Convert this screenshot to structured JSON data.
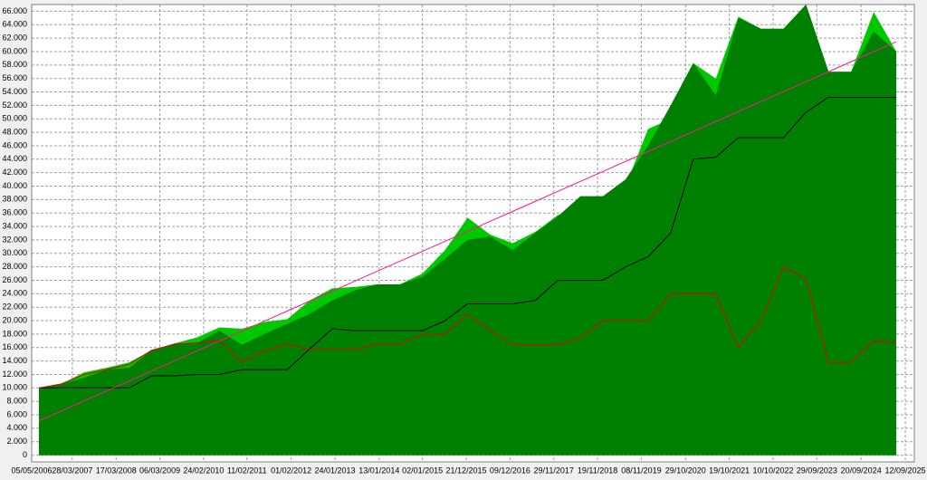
{
  "chart_data": {
    "type": "area",
    "x": [
      2006.5,
      2007,
      2007.5,
      2008,
      2008.5,
      2009,
      2009.5,
      2010,
      2010.5,
      2011,
      2011.5,
      2012,
      2012.5,
      2013,
      2013.5,
      2014,
      2014.5,
      2015,
      2015.5,
      2016,
      2016.5,
      2017,
      2017.5,
      2018,
      2018.5,
      2019,
      2019.5,
      2020,
      2020.5,
      2021,
      2021.5,
      2022,
      2022.5,
      2023,
      2023.5,
      2024,
      2024.5,
      2025,
      2025.5
    ],
    "series": [
      {
        "kind": "area",
        "color": "#00c800",
        "values": [
          10000,
          10600,
          12300,
          13000,
          13800,
          15600,
          16600,
          17500,
          19000,
          18800,
          19800,
          20200,
          23000,
          24800,
          25000,
          25400,
          25400,
          27000,
          30500,
          35300,
          32800,
          31500,
          33200,
          35700,
          37000,
          38500,
          40000,
          48500,
          50000,
          58300,
          56000,
          65200,
          63400,
          63400,
          67000,
          57000,
          57000,
          65900,
          60000
        ]
      },
      {
        "kind": "area",
        "color": "#008000",
        "values": [
          10000,
          10600,
          11500,
          12700,
          13000,
          15600,
          16500,
          16600,
          18500,
          16400,
          18000,
          19500,
          21000,
          23000,
          24500,
          25400,
          25400,
          26500,
          29200,
          32000,
          32500,
          30500,
          33000,
          35500,
          38500,
          38500,
          41000,
          46000,
          52000,
          58300,
          53500,
          65000,
          63400,
          63400,
          67000,
          57000,
          57000,
          63000,
          60000
        ]
      },
      {
        "kind": "line",
        "color": "#000000",
        "values": [
          10000,
          10000,
          10000,
          10000,
          10000,
          11800,
          11800,
          12000,
          12000,
          12700,
          12700,
          12700,
          15800,
          18800,
          18500,
          18500,
          18500,
          18500,
          20000,
          22500,
          22500,
          22500,
          23000,
          26000,
          26000,
          26000,
          28000,
          29500,
          33000,
          44000,
          44300,
          47200,
          47200,
          47200,
          51000,
          53200,
          53200,
          53200,
          53200
        ]
      },
      {
        "kind": "line",
        "color": "#e00000",
        "values": [
          10000,
          10600,
          12000,
          12700,
          13500,
          15600,
          16500,
          16700,
          17000,
          13800,
          15500,
          16500,
          15700,
          15700,
          15700,
          16500,
          16500,
          18000,
          18000,
          21000,
          18500,
          16400,
          16400,
          16400,
          17500,
          20000,
          20000,
          20000,
          24000,
          24000,
          24000,
          16000,
          20000,
          28000,
          26200,
          13800,
          13800,
          17000,
          16700
        ]
      },
      {
        "kind": "line",
        "color": "#ff1493",
        "values": [
          5100,
          6580,
          8070,
          9550,
          11030,
          12520,
          14000,
          15480,
          16970,
          18450,
          19930,
          21420,
          22900,
          24380,
          25870,
          27350,
          28830,
          30320,
          31800,
          33280,
          34770,
          36250,
          37730,
          39220,
          40700,
          42180,
          43670,
          45150,
          46630,
          48120,
          49600,
          51080,
          52570,
          54050,
          55530,
          57020,
          58500,
          59980,
          61470
        ]
      }
    ],
    "xlim": [
      2006.34,
      2025.9
    ],
    "xticks": [
      {
        "value": 2006.34,
        "label": "05/05/2006"
      },
      {
        "value": 2007.24,
        "label": "28/03/2007"
      },
      {
        "value": 2008.21,
        "label": "17/03/2008"
      },
      {
        "value": 2009.18,
        "label": "06/03/2009"
      },
      {
        "value": 2010.15,
        "label": "24/02/2010"
      },
      {
        "value": 2011.11,
        "label": "11/02/2011"
      },
      {
        "value": 2012.09,
        "label": "01/02/2012"
      },
      {
        "value": 2013.06,
        "label": "24/01/2013"
      },
      {
        "value": 2014.04,
        "label": "13/01/2014"
      },
      {
        "value": 2015.0,
        "label": "02/01/2015"
      },
      {
        "value": 2015.97,
        "label": "21/12/2015"
      },
      {
        "value": 2016.94,
        "label": "09/12/2016"
      },
      {
        "value": 2017.91,
        "label": "29/11/2017"
      },
      {
        "value": 2018.88,
        "label": "19/11/2018"
      },
      {
        "value": 2019.85,
        "label": "08/11/2019"
      },
      {
        "value": 2020.83,
        "label": "29/10/2020"
      },
      {
        "value": 2021.8,
        "label": "19/10/2021"
      },
      {
        "value": 2022.77,
        "label": "10/10/2022"
      },
      {
        "value": 2023.74,
        "label": "29/09/2023"
      },
      {
        "value": 2024.72,
        "label": "20/09/2024"
      },
      {
        "value": 2025.7,
        "label": "12/09/2025"
      }
    ],
    "ylim": [
      -1000,
      67000
    ],
    "yticks": [
      0,
      {
        "value": 2000,
        "label": "2.000"
      },
      {
        "value": 4000,
        "label": "4.000"
      },
      {
        "value": 6000,
        "label": "6.000"
      },
      {
        "value": 8000,
        "label": "8.000"
      },
      {
        "value": 10000,
        "label": "10.000"
      },
      {
        "value": 12000,
        "label": "12.000"
      },
      {
        "value": 14000,
        "label": "14.000"
      },
      {
        "value": 16000,
        "label": "16.000"
      },
      {
        "value": 18000,
        "label": "18.000"
      },
      {
        "value": 20000,
        "label": "20.000"
      },
      {
        "value": 22000,
        "label": "22.000"
      },
      {
        "value": 24000,
        "label": "24.000"
      },
      {
        "value": 26000,
        "label": "26.000"
      },
      {
        "value": 28000,
        "label": "28.000"
      },
      {
        "value": 30000,
        "label": "30.000"
      },
      {
        "value": 32000,
        "label": "32.000"
      },
      {
        "value": 34000,
        "label": "34.000"
      },
      {
        "value": 36000,
        "label": "36.000"
      },
      {
        "value": 38000,
        "label": "38.000"
      },
      {
        "value": 40000,
        "label": "40.000"
      },
      {
        "value": 42000,
        "label": "42.000"
      },
      {
        "value": 44000,
        "label": "44.000"
      },
      {
        "value": 46000,
        "label": "46.000"
      },
      {
        "value": 48000,
        "label": "48.000"
      },
      {
        "value": 50000,
        "label": "50.000"
      },
      {
        "value": 52000,
        "label": "52.000"
      },
      {
        "value": 54000,
        "label": "54.000"
      },
      {
        "value": 56000,
        "label": "56.000"
      },
      {
        "value": 58000,
        "label": "58.000"
      },
      {
        "value": 60000,
        "label": "60.000"
      },
      {
        "value": 62000,
        "label": "62.000"
      },
      {
        "value": 64000,
        "label": "64.000"
      },
      {
        "value": 66000,
        "label": "66.000"
      }
    ],
    "grid": true
  }
}
